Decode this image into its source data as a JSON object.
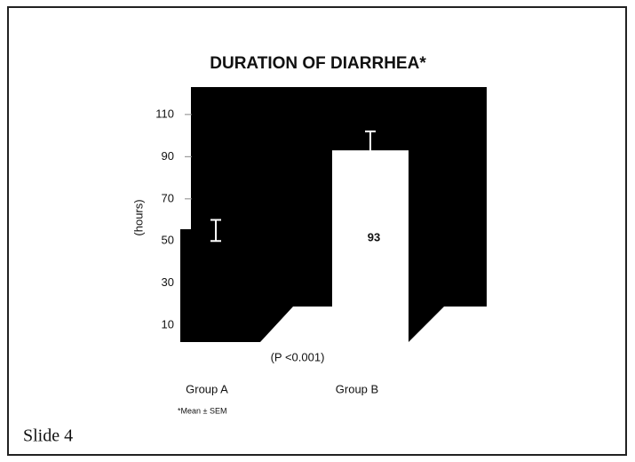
{
  "chart_data": {
    "type": "bar",
    "title": "DURATION OF DIARRHEA*",
    "y_label": "(hours)",
    "categories": [
      "Group A",
      "Group B"
    ],
    "values": [
      55,
      93
    ],
    "errors": [
      5,
      9
    ],
    "value_labels": [
      null,
      "93"
    ],
    "bar_colors": [
      "#000000",
      "#ffffff"
    ],
    "ylim": [
      0,
      123
    ],
    "yticks": [
      10,
      30,
      50,
      70,
      90,
      110
    ],
    "annotation": "(P <0.001)",
    "footnote": "*Mean ± SEM",
    "slide_label": "Slide 4"
  }
}
